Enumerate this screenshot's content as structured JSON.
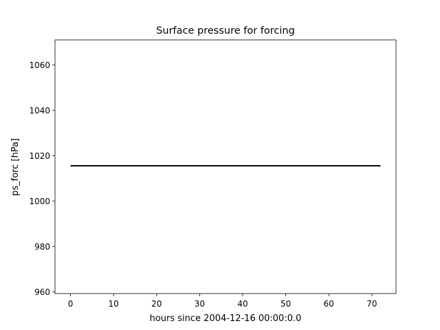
{
  "chart_data": {
    "type": "line",
    "title": "Surface pressure for forcing",
    "xlabel": "hours since 2004-12-16 00:00:0.0",
    "ylabel": "ps_forc [hPa]",
    "xlim": [
      -3.6,
      75.6
    ],
    "ylim": [
      959.2,
      1071.0
    ],
    "xticks": [
      0,
      10,
      20,
      30,
      40,
      50,
      60,
      70
    ],
    "yticks": [
      960,
      980,
      1000,
      1020,
      1040,
      1060
    ],
    "grid": false,
    "series": [
      {
        "x": [
          0,
          72
        ],
        "y": [
          1015.5,
          1015.5
        ],
        "color": "#000000"
      }
    ]
  }
}
